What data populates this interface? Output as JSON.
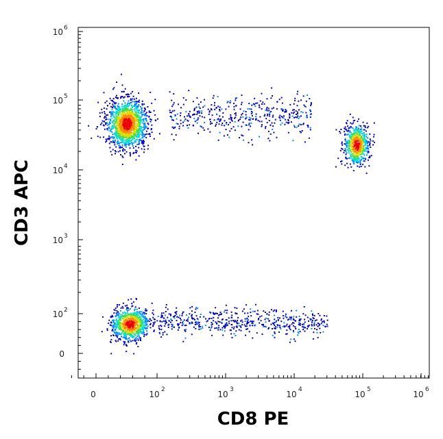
{
  "chart_data": {
    "type": "scatter",
    "subtype": "flow-cytometry density dot plot",
    "title": "",
    "xlabel": "CD8 PE",
    "ylabel": "CD3 APC",
    "x_scale": "biexponential (log above ~10^2)",
    "y_scale": "biexponential (log above ~10^2)",
    "xlim": [
      -50,
      1000000
    ],
    "ylim": [
      -60,
      1000000
    ],
    "x_ticks": [
      {
        "base": "0",
        "exp": ""
      },
      {
        "base": "10",
        "exp": "2"
      },
      {
        "base": "10",
        "exp": "3"
      },
      {
        "base": "10",
        "exp": "4"
      },
      {
        "base": "10",
        "exp": "5"
      },
      {
        "base": "10",
        "exp": "6"
      }
    ],
    "y_ticks": [
      {
        "base": "0",
        "exp": ""
      },
      {
        "base": "10",
        "exp": "2"
      },
      {
        "base": "10",
        "exp": "3"
      },
      {
        "base": "10",
        "exp": "4"
      },
      {
        "base": "10",
        "exp": "5"
      },
      {
        "base": "10",
        "exp": "6"
      }
    ],
    "grid": false,
    "legend": "none",
    "density_colors": [
      "#0000cc",
      "#0088ff",
      "#00dddd",
      "#44dd44",
      "#dddd00",
      "#ff8800",
      "#ee0000"
    ],
    "populations": [
      {
        "x_center": 50,
        "y_center": 50000,
        "x_spread": 0.15,
        "y_spread": 0.18,
        "count": 1400
      },
      {
        "x_center": 80000,
        "y_center": 25000,
        "x_spread": 0.09,
        "y_spread": 0.15,
        "count": 650
      },
      {
        "x_center": 55,
        "y_center": 75,
        "x_spread": 0.14,
        "y_spread": 0.12,
        "count": 850
      },
      {
        "x_range": [
          150,
          18000
        ],
        "y_center": 65000,
        "y_spread": 0.14,
        "count": 420
      },
      {
        "x_range": [
          100,
          30000
        ],
        "y_center": 80,
        "y_spread": 0.1,
        "count": 520
      }
    ]
  }
}
